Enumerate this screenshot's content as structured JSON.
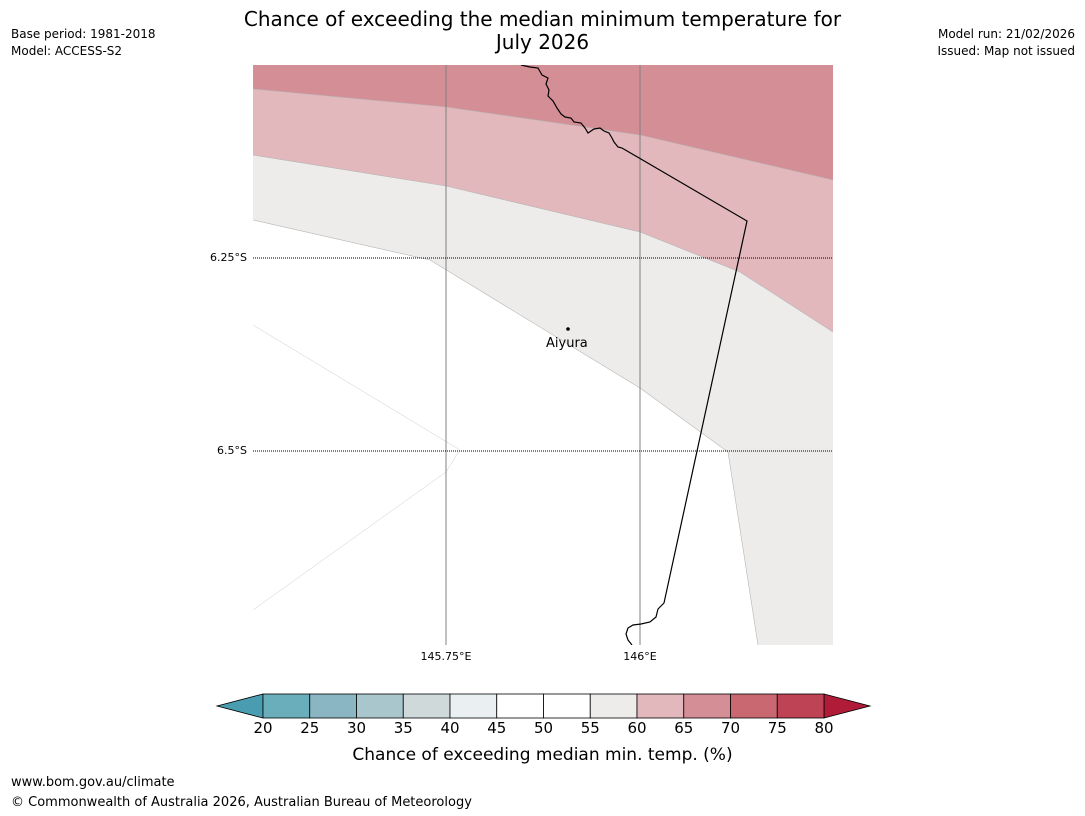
{
  "header": {
    "title_line1": "Chance of exceeding the median minimum temperature for",
    "title_line2": "July 2026",
    "base_period": "Base period: 1981-2018",
    "model": "Model: ACCESS-S2",
    "model_run": "Model run: 21/02/2026",
    "issued": "Issued: Map not issued"
  },
  "map": {
    "latitude_labels": [
      "6.25°S",
      "6.5°S"
    ],
    "longitude_labels": [
      "145.75°E",
      "146°E"
    ],
    "place": {
      "name": "Aiyura"
    },
    "zone_colors": {
      "band_65_70": "#d48e95",
      "band_60_65": "#e2b8bd",
      "band_55_60": "#eeecea",
      "band_45_55": "#ffffff"
    }
  },
  "colorbar": {
    "title": "Chance of exceeding median min. temp. (%)",
    "ticks": [
      "20",
      "25",
      "30",
      "35",
      "40",
      "45",
      "50",
      "55",
      "60",
      "65",
      "70",
      "75",
      "80"
    ],
    "under_color": "#4a9db0",
    "over_color": "#b01c38",
    "bin_colors": [
      "#6aaebc",
      "#8ab6c4",
      "#a9c6cc",
      "#cfd9da",
      "#eaf0f1",
      "#ffffff",
      "#ffffff",
      "#eeecea",
      "#e2b8bd",
      "#d48e95",
      "#c96870",
      "#be4355"
    ]
  },
  "footer": {
    "url": "www.bom.gov.au/climate",
    "copyright": "© Commonwealth of Australia 2026, Australian Bureau of Meteorology"
  }
}
